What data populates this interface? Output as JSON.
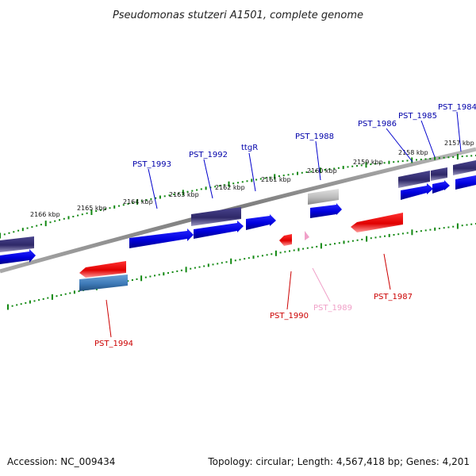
{
  "title": "Pseudomonas stutzeri A1501, complete genome",
  "accession": "Accession: NC_009434",
  "summary": "Topology: circular; Length: 4,567,418 bp; Genes: 4,201",
  "colors": {
    "forward_gene": "#0000ee",
    "reverse_gene": "#ee0000",
    "feature_dark": "#3a3478",
    "feature_steel": "#4a86c0",
    "gray_gene": "#bbbbbb",
    "pseudo_pink": "#f0a0c8",
    "tick_green": "#118811",
    "backbone": "#8a8a8a"
  },
  "kbp_labels": [
    "2166 kbp",
    "2165 kbp",
    "2164 kbp",
    "2163 kbp",
    "2162 kbp",
    "2161 kbp",
    "2160 kbp",
    "2159 kbp",
    "2158 kbp",
    "2157 kbp"
  ],
  "gene_labels": [
    {
      "text": "PST_1993",
      "color": "#0000aa"
    },
    {
      "text": "PST_1992",
      "color": "#0000aa"
    },
    {
      "text": "ttgR",
      "color": "#0000aa"
    },
    {
      "text": "PST_1988",
      "color": "#0000aa"
    },
    {
      "text": "PST_1986",
      "color": "#0000aa"
    },
    {
      "text": "PST_1985",
      "color": "#0000aa"
    },
    {
      "text": "PST_1984",
      "color": "#0000aa"
    },
    {
      "text": "PST_1990",
      "color": "#cc0000"
    },
    {
      "text": "PST_1989",
      "color": "#f0a0c8"
    },
    {
      "text": "PST_1987",
      "color": "#cc0000"
    },
    {
      "text": "PST_1994",
      "color": "#cc0000"
    }
  ]
}
